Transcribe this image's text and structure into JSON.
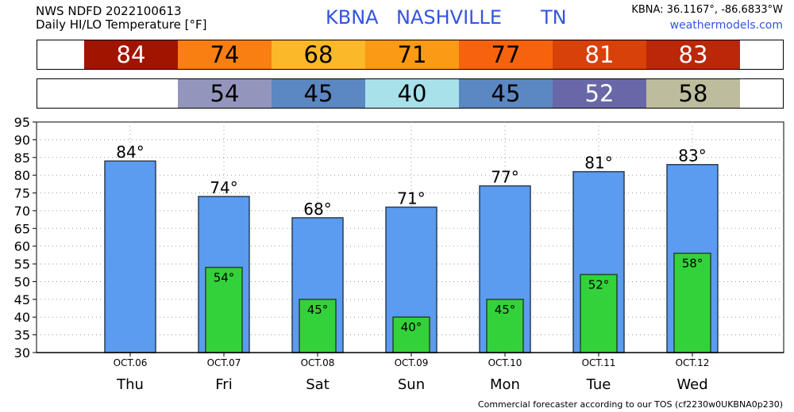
{
  "header": {
    "line1": "NWS NDFD 2022100613",
    "line2": "Daily HI/LO Temperature [°F]",
    "station_id": "KBNA",
    "city": "NASHVILLE",
    "state": "TN",
    "coords": "KBNA: 36.1167°, -86.6833°W",
    "site": "weathermodels.com"
  },
  "hi_strip": [
    {
      "value": "84",
      "color": "#a01400",
      "text_color": "#ffffff"
    },
    {
      "value": "74",
      "color": "#f97f12",
      "text_color": "#000000"
    },
    {
      "value": "68",
      "color": "#fbb829",
      "text_color": "#000000"
    },
    {
      "value": "71",
      "color": "#fb9a14",
      "text_color": "#000000"
    },
    {
      "value": "77",
      "color": "#f7630c",
      "text_color": "#000000"
    },
    {
      "value": "81",
      "color": "#d84109",
      "text_color": "#ffffff"
    },
    {
      "value": "83",
      "color": "#bb2807",
      "text_color": "#ffffff"
    }
  ],
  "lo_strip": [
    {
      "value": "",
      "color": "#ffffff",
      "text_color": "#000000"
    },
    {
      "value": "54",
      "color": "#9495bd",
      "text_color": "#000000"
    },
    {
      "value": "45",
      "color": "#5b87c2",
      "text_color": "#000000"
    },
    {
      "value": "40",
      "color": "#a8e1ea",
      "text_color": "#000000"
    },
    {
      "value": "45",
      "color": "#5b87c2",
      "text_color": "#000000"
    },
    {
      "value": "52",
      "color": "#6868a8",
      "text_color": "#ffffff"
    },
    {
      "value": "58",
      "color": "#bdbd9d",
      "text_color": "#000000"
    }
  ],
  "chart_data": {
    "type": "bar",
    "categories": [
      "OCT.06",
      "OCT.07",
      "OCT.08",
      "OCT.09",
      "OCT.10",
      "OCT.11",
      "OCT.12"
    ],
    "day_labels": [
      "Thu",
      "Fri",
      "Sat",
      "Sun",
      "Mon",
      "Tue",
      "Wed"
    ],
    "series": [
      {
        "values": [
          84,
          74,
          68,
          71,
          77,
          81,
          83
        ],
        "labels": [
          "84°",
          "74°",
          "68°",
          "71°",
          "77°",
          "81°",
          "83°"
        ],
        "color": "#5b9bf0"
      },
      {
        "values": [
          null,
          54,
          45,
          40,
          45,
          52,
          58
        ],
        "labels": [
          "",
          "54°",
          "45°",
          "40°",
          "45°",
          "52°",
          "58°"
        ],
        "color": "#34d23a"
      }
    ],
    "yticks": [
      "30",
      "35",
      "40",
      "45",
      "50",
      "55",
      "60",
      "65",
      "70",
      "75",
      "80",
      "85",
      "90",
      "95"
    ],
    "ylim": [
      30,
      95
    ],
    "grid": true
  },
  "footer": "Commercial forecaster according to our TOS (cf2230w0UKBNA0p230)"
}
